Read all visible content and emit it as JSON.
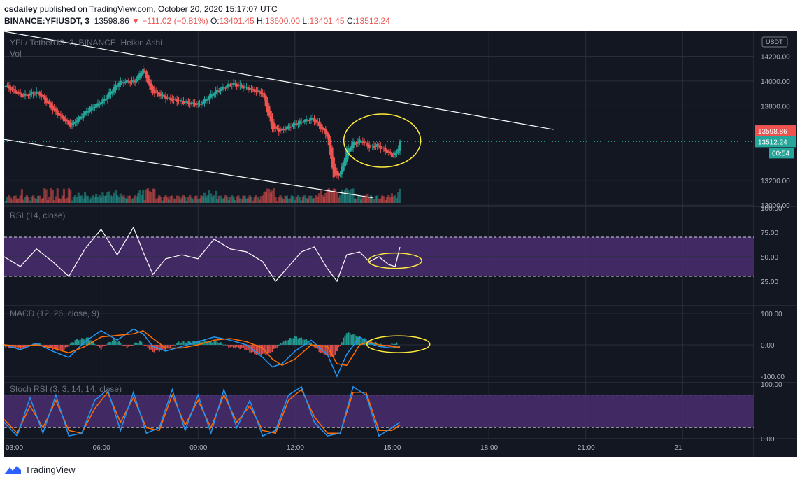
{
  "header": {
    "author": "csdailey",
    "published_text": "published on TradingView.com, October 20, 2020 15:17:07 UTC",
    "symbol_line": "BINANCE:YFIUSDT, 3",
    "last_price": "13598.86",
    "change": "▼ −111.02 (−0.81%)",
    "o_label": "O:",
    "o_value": "13401.45",
    "h_label": "H:",
    "h_value": "13600.00",
    "l_label": "L:",
    "l_value": "13401.45",
    "c_label": "C:",
    "c_value": "13512.24"
  },
  "colors": {
    "background": "#131722",
    "grid": "#2a2e39",
    "up": "#26a69a",
    "down": "#ef5350",
    "rsi_line": "#ffffff",
    "band_fill": "#4a2d6e",
    "macd_line": "#2196f3",
    "signal_line": "#ff6d00",
    "stoch_k": "#2196f3",
    "stoch_d": "#ff6d00",
    "highlight_ellipse": "#ffeb3b",
    "trendline": "#ffffff"
  },
  "chart_data": [
    {
      "type": "candlestick",
      "title": "YFI / TetherUS, 3, BINANCE, Heikin Ashi",
      "volume_label": "Vol",
      "currency_label": "USDT",
      "y_axis_ticks": [
        "14200.00",
        "14000.00",
        "13800.00",
        "13200.00",
        "13000.00"
      ],
      "ylim": [
        12990,
        14400
      ],
      "price_tags": {
        "last": "13598.86",
        "close": "13512.24",
        "countdown": "00:54"
      },
      "x_ticks": [
        "03:00",
        "06:00",
        "09:00",
        "12:00",
        "15:00",
        "18:00",
        "21:00",
        "21"
      ],
      "x_tick_times": [
        3,
        6,
        9,
        12,
        15,
        18,
        21,
        24
      ],
      "x_range": [
        3,
        26.2
      ],
      "series": {
        "time": [
          3.05,
          3.55,
          4.05,
          4.55,
          5.05,
          5.55,
          6.05,
          6.55,
          7.05,
          7.3,
          7.55,
          8.05,
          8.55,
          9.05,
          9.55,
          10.05,
          10.55,
          11.0,
          11.3,
          11.55,
          12.05,
          12.55,
          13.0,
          13.2,
          13.4,
          13.6,
          13.8,
          14.05,
          14.3,
          14.55,
          14.8,
          15.0,
          15.15,
          15.25
        ],
        "close": [
          13960,
          13880,
          13910,
          13760,
          13640,
          13760,
          13840,
          13990,
          14000,
          14100,
          13920,
          13860,
          13830,
          13810,
          13920,
          13980,
          13940,
          13900,
          13620,
          13600,
          13660,
          13700,
          13560,
          13230,
          13250,
          13440,
          13500,
          13520,
          13470,
          13480,
          13440,
          13400,
          13420,
          13512
        ]
      },
      "trendlines": [
        {
          "from": [
            3,
            14400
          ],
          "to": [
            20.0,
            13610
          ]
        },
        {
          "from": [
            3,
            13530
          ],
          "to": [
            14.4,
            13060
          ]
        }
      ]
    },
    {
      "type": "line",
      "title": "RSI (14, close)",
      "y_axis_ticks": [
        "100.00",
        "75.00",
        "50.00",
        "25.00"
      ],
      "ylim": [
        0,
        100
      ],
      "bands": [
        30,
        70
      ],
      "x": [
        3.0,
        3.5,
        4.0,
        4.5,
        5.0,
        5.5,
        6.0,
        6.5,
        7.0,
        7.3,
        7.6,
        8.0,
        8.5,
        9.0,
        9.5,
        10.0,
        10.5,
        11.0,
        11.4,
        11.8,
        12.2,
        12.6,
        13.0,
        13.3,
        13.6,
        14.0,
        14.3,
        14.6,
        14.9,
        15.1,
        15.25
      ],
      "values": [
        50,
        40,
        58,
        45,
        30,
        58,
        78,
        52,
        80,
        55,
        32,
        48,
        52,
        48,
        68,
        58,
        55,
        45,
        25,
        40,
        55,
        60,
        38,
        25,
        52,
        55,
        45,
        50,
        42,
        40,
        60
      ]
    },
    {
      "type": "line",
      "title": "MACD (12, 26, close, 9)",
      "y_axis_ticks": [
        "100.00",
        "0.00",
        "-100.00"
      ],
      "ylim": [
        -120,
        120
      ],
      "x": [
        3.0,
        3.5,
        4.0,
        4.5,
        5.0,
        5.5,
        6.0,
        6.5,
        7.0,
        7.3,
        7.6,
        8.0,
        8.5,
        9.0,
        9.5,
        10.0,
        10.5,
        11.0,
        11.3,
        11.6,
        12.0,
        12.5,
        13.0,
        13.3,
        13.6,
        14.0,
        14.3,
        14.6,
        15.0,
        15.25
      ],
      "series": [
        {
          "name": "MACD",
          "values": [
            0,
            -15,
            5,
            -20,
            -40,
            10,
            45,
            15,
            50,
            35,
            -5,
            -20,
            -5,
            10,
            25,
            15,
            0,
            -40,
            -70,
            -60,
            -20,
            15,
            -30,
            -100,
            -30,
            25,
            5,
            -5,
            -10,
            -5
          ]
        },
        {
          "name": "Signal",
          "values": [
            0,
            -5,
            0,
            -10,
            -25,
            -5,
            25,
            30,
            35,
            45,
            20,
            -10,
            -10,
            0,
            15,
            20,
            10,
            -10,
            -45,
            -65,
            -45,
            0,
            -5,
            -60,
            -65,
            0,
            10,
            0,
            -5,
            -8
          ]
        }
      ],
      "histogram_x": [
        3.2,
        3.6,
        4.0,
        4.4,
        4.8,
        5.2,
        5.6,
        6.0,
        6.4,
        6.8,
        7.2,
        7.6,
        8.0,
        8.4,
        8.8,
        9.2,
        9.6,
        10.0,
        10.4,
        10.8,
        11.2,
        11.6,
        12.0,
        12.4,
        12.8,
        13.2,
        13.6,
        14.0,
        14.4,
        14.8,
        15.1
      ],
      "histogram": [
        -8,
        -12,
        6,
        -10,
        -20,
        15,
        22,
        -12,
        18,
        -8,
        12,
        -22,
        -15,
        8,
        10,
        12,
        10,
        -8,
        -12,
        -30,
        -30,
        8,
        26,
        15,
        -25,
        -40,
        40,
        25,
        10,
        -4,
        5
      ]
    },
    {
      "type": "line",
      "title": "Stoch RSI (3, 3, 14, 14, close)",
      "y_axis_ticks": [
        "100.00",
        "0.00"
      ],
      "ylim": [
        0,
        100
      ],
      "bands": [
        20,
        80
      ],
      "x": [
        3.0,
        3.4,
        3.8,
        4.2,
        4.6,
        5.0,
        5.4,
        5.8,
        6.2,
        6.6,
        7.0,
        7.4,
        7.8,
        8.2,
        8.6,
        9.0,
        9.4,
        9.8,
        10.2,
        10.6,
        11.0,
        11.4,
        11.8,
        12.2,
        12.6,
        13.0,
        13.4,
        13.8,
        14.2,
        14.6,
        15.0,
        15.25
      ],
      "series": [
        {
          "name": "K",
          "values": [
            30,
            5,
            75,
            10,
            80,
            5,
            10,
            70,
            90,
            15,
            85,
            10,
            20,
            90,
            15,
            80,
            10,
            90,
            20,
            70,
            5,
            15,
            80,
            95,
            30,
            5,
            10,
            95,
            80,
            5,
            20,
            30
          ]
        },
        {
          "name": "D",
          "values": [
            35,
            10,
            60,
            20,
            70,
            15,
            10,
            55,
            85,
            30,
            75,
            20,
            15,
            80,
            25,
            70,
            20,
            80,
            30,
            60,
            15,
            10,
            70,
            90,
            40,
            10,
            10,
            85,
            85,
            15,
            15,
            25
          ]
        }
      ]
    }
  ],
  "footer": {
    "brand": "TradingView"
  }
}
